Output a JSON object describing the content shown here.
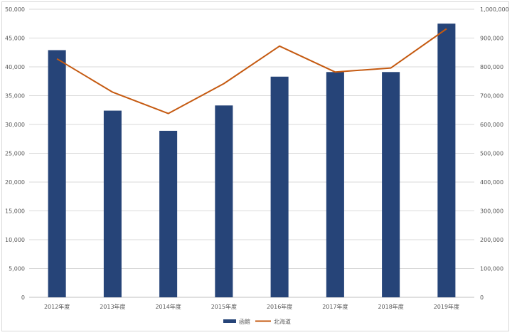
{
  "chart_data": {
    "type": "bar+line",
    "title": "",
    "categories": [
      "2012年度",
      "2013年度",
      "2014年度",
      "2015年度",
      "2016年度",
      "2017年度",
      "2018年度",
      "2019年度"
    ],
    "series": [
      {
        "name": "函館",
        "type": "bar",
        "axis": "left",
        "color": "#264478",
        "values": [
          42900,
          32400,
          28900,
          33300,
          38300,
          39100,
          39100,
          47500
        ]
      },
      {
        "name": "北海道",
        "type": "line",
        "axis": "right",
        "color": "#C55A11",
        "values": [
          828000,
          712000,
          638000,
          742000,
          872000,
          782000,
          796000,
          932000
        ]
      }
    ],
    "y_left": {
      "min": 0,
      "max": 50000,
      "step": 5000,
      "ticks": [
        "0",
        "5,000",
        "10,000",
        "15,000",
        "20,000",
        "25,000",
        "30,000",
        "35,000",
        "40,000",
        "45,000",
        "50,000"
      ]
    },
    "y_right": {
      "min": 0,
      "max": 1000000,
      "step": 100000,
      "ticks": [
        "0",
        "100,000",
        "200,000",
        "300,000",
        "400,000",
        "500,000",
        "600,000",
        "700,000",
        "800,000",
        "900,000",
        "1,000,000"
      ]
    },
    "grid": true,
    "legend_position": "bottom"
  }
}
